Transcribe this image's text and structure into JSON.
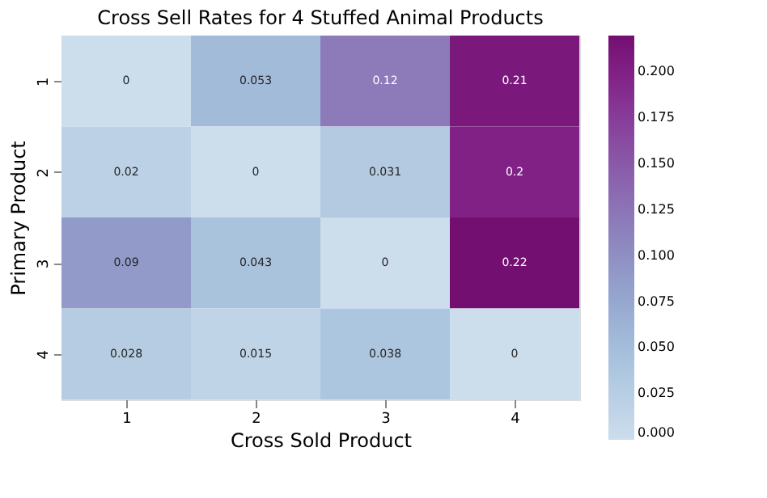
{
  "chart_data": {
    "type": "heatmap",
    "title": "Cross Sell Rates for 4 Stuffed Animal Products",
    "xlabel": "Cross Sold Product",
    "ylabel": "Primary Product",
    "categories": [
      "1",
      "2",
      "3",
      "4"
    ],
    "y_categories": [
      "1",
      "2",
      "3",
      "4"
    ],
    "cells": [
      [
        0,
        0.053,
        0.12,
        0.21
      ],
      [
        0.02,
        0,
        0.031,
        0.2
      ],
      [
        0.09,
        0.043,
        0,
        0.22
      ],
      [
        0.028,
        0.015,
        0.038,
        0
      ]
    ],
    "data_labels": true,
    "clim": [
      0,
      0.22
    ],
    "cticks": [
      {
        "value": 0,
        "label": "0.000"
      },
      {
        "value": 0.025,
        "label": "0.025"
      },
      {
        "value": 0.05,
        "label": "0.050"
      },
      {
        "value": 0.075,
        "label": "0.075"
      },
      {
        "value": 0.1,
        "label": "0.100"
      },
      {
        "value": 0.125,
        "label": "0.125"
      },
      {
        "value": 0.15,
        "label": "0.150"
      },
      {
        "value": 0.175,
        "label": "0.175"
      },
      {
        "value": 0.2,
        "label": "0.200"
      }
    ]
  }
}
